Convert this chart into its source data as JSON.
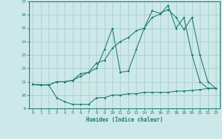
{
  "xlabel": "Humidex (Indice chaleur)",
  "bg_color": "#cce8e8",
  "grid_color": "#aacccc",
  "line_color": "#1a7a6e",
  "xlim": [
    -0.5,
    23.5
  ],
  "ylim": [
    9,
    17
  ],
  "xticks": [
    0,
    1,
    2,
    3,
    4,
    5,
    6,
    7,
    8,
    9,
    10,
    11,
    12,
    13,
    14,
    15,
    16,
    17,
    18,
    19,
    20,
    21,
    22,
    23
  ],
  "yticks": [
    9,
    10,
    11,
    12,
    13,
    14,
    15,
    16,
    17
  ],
  "line1_x": [
    0,
    1,
    2,
    3,
    4,
    5,
    6,
    7,
    8,
    9,
    10,
    11,
    12,
    13,
    14,
    15,
    16,
    17,
    18,
    19,
    20,
    21,
    22,
    23
  ],
  "line1_y": [
    10.8,
    10.75,
    10.75,
    9.8,
    9.5,
    9.3,
    9.3,
    9.3,
    9.8,
    9.8,
    10.0,
    10.0,
    10.1,
    10.1,
    10.2,
    10.2,
    10.2,
    10.2,
    10.3,
    10.3,
    10.35,
    10.4,
    10.5,
    10.5
  ],
  "line2_x": [
    0,
    1,
    2,
    3,
    4,
    5,
    6,
    7,
    8,
    9,
    10,
    11,
    12,
    13,
    14,
    15,
    16,
    17,
    18,
    19,
    20,
    21,
    22,
    23
  ],
  "line2_y": [
    10.8,
    10.75,
    10.75,
    11.0,
    11.0,
    11.1,
    11.4,
    11.7,
    12.4,
    12.6,
    13.5,
    14.0,
    14.3,
    14.8,
    15.0,
    15.8,
    16.05,
    16.7,
    15.0,
    15.8,
    13.0,
    11.0,
    10.5,
    10.5
  ],
  "line3_x": [
    0,
    1,
    2,
    3,
    4,
    5,
    6,
    7,
    8,
    9,
    10,
    11,
    12,
    13,
    14,
    15,
    16,
    17,
    18,
    19,
    20,
    21,
    22,
    23
  ],
  "line3_y": [
    10.8,
    10.75,
    10.75,
    11.0,
    11.0,
    11.1,
    11.6,
    11.7,
    12.0,
    13.4,
    15.0,
    11.7,
    11.8,
    13.4,
    15.0,
    16.3,
    16.1,
    16.4,
    15.8,
    14.9,
    15.8,
    13.0,
    11.0,
    10.5
  ]
}
